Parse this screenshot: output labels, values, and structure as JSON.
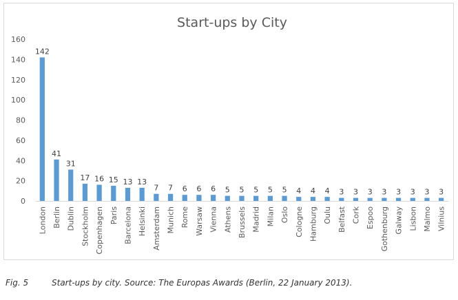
{
  "chart_data": {
    "type": "bar",
    "title": "Start-ups by City",
    "xlabel": "",
    "ylabel": "",
    "ylim": [
      0,
      160
    ],
    "yticks": [
      0,
      20,
      40,
      60,
      80,
      100,
      120,
      140,
      160
    ],
    "grid": false,
    "legend": "none",
    "bar_color": "#5b9bd5",
    "categories": [
      "London",
      "Berlin",
      "Dublin",
      "Stockholm",
      "Copenhagen",
      "Paris",
      "Barcelona",
      "Helsinki",
      "Amsterdam",
      "Munich",
      "Rome",
      "Warsaw",
      "Vienna",
      "Athens",
      "Brussels",
      "Madrid",
      "Milan",
      "Oslo",
      "Cologne",
      "Hamburg",
      "Oulu",
      "Belfast",
      "Cork",
      "Espoo",
      "Gothenburg",
      "Galway",
      "Lisbon",
      "Malmo",
      "Vilnius"
    ],
    "values": [
      142,
      41,
      31,
      17,
      16,
      15,
      13,
      13,
      7,
      7,
      6,
      6,
      6,
      5,
      5,
      5,
      5,
      5,
      4,
      4,
      4,
      3,
      3,
      3,
      3,
      3,
      3,
      3,
      3
    ]
  },
  "caption": {
    "label": "Fig. 5",
    "text": "Start-ups by city. Source: The Europas Awards (Berlin, 22 January 2013)."
  }
}
